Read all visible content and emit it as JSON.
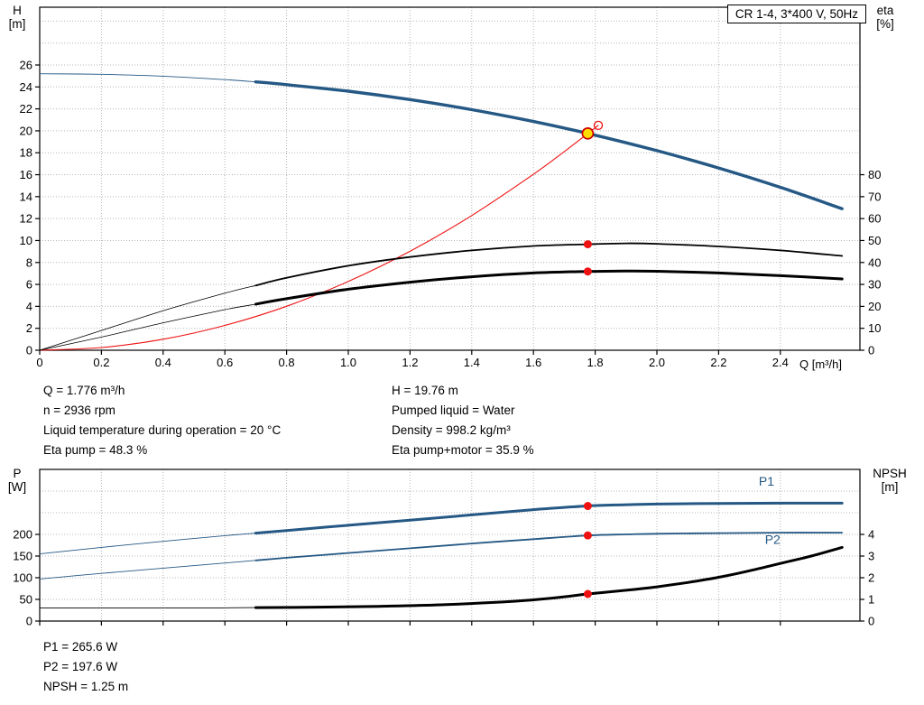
{
  "header": {
    "title_box": "CR 1-4, 3*400 V, 50Hz"
  },
  "colors": {
    "blue": "#255884",
    "red": "#ee1111",
    "black": "#000000",
    "yellow": "#ffdd00",
    "duty_ring": "#cc0000",
    "grid": "#b4b4b4"
  },
  "top_axes": {
    "left_title": "H",
    "left_unit": "[m]",
    "right_title": "eta",
    "right_unit": "[%]",
    "x_title": "Q [m³/h]"
  },
  "bottom_axes": {
    "left_title": "P",
    "left_unit": "[W]",
    "right_title": "NPSH",
    "right_unit": "[m]"
  },
  "duty_info": {
    "left": [
      "Q = 1.776 m³/h",
      "n = 2936 rpm",
      "Liquid temperature during operation = 20 °C",
      "Eta pump = 48.3 %"
    ],
    "right": [
      "H = 19.76 m",
      "Pumped liquid = Water",
      "Density = 998.2 kg/m³",
      "Eta pump+motor = 35.9 %"
    ]
  },
  "power_info": [
    "P1 = 265.6 W",
    "P2 = 197.6 W",
    "NPSH = 1.25 m"
  ],
  "chart_data": [
    {
      "type": "line",
      "title": "QH curve with efficiency and system curve",
      "grid": "dotted",
      "legend": "none",
      "x_axis": {
        "label": "Q [m³/h]",
        "range": [
          0,
          2.66
        ],
        "ticks": [
          "0",
          "0.2",
          "0.4",
          "0.6",
          "0.8",
          "1.0",
          "1.2",
          "1.4",
          "1.6",
          "1.8",
          "2.0",
          "2.2",
          "2.4"
        ]
      },
      "y_left": {
        "label": "H [m]",
        "range": [
          0,
          31.3
        ],
        "ticks": [
          "0",
          "2",
          "4",
          "6",
          "8",
          "10",
          "12",
          "14",
          "16",
          "18",
          "20",
          "22",
          "24",
          "26"
        ]
      },
      "y_right": {
        "label": "eta [%]",
        "range": [
          0,
          100
        ],
        "ticks": [
          "0",
          "10",
          "20",
          "30",
          "40",
          "50",
          "60",
          "70",
          "80"
        ]
      },
      "series": [
        {
          "name": "head-curve",
          "axis": "left",
          "color": "blue",
          "width": 3.4,
          "thin_width": 0.9,
          "thick_from": 0.7,
          "points": [
            [
              0,
              25.2
            ],
            [
              0.2,
              25.15
            ],
            [
              0.4,
              24.98
            ],
            [
              0.6,
              24.67
            ],
            [
              0.7,
              24.46
            ],
            [
              0.8,
              24.21
            ],
            [
              1,
              23.61
            ],
            [
              1.2,
              22.85
            ],
            [
              1.4,
              21.93
            ],
            [
              1.6,
              20.85
            ],
            [
              1.776,
              19.76
            ],
            [
              2,
              18.19
            ],
            [
              2.2,
              16.61
            ],
            [
              2.4,
              14.85
            ],
            [
              2.6,
              12.9
            ]
          ]
        },
        {
          "name": "system-curve",
          "axis": "left",
          "color": "red",
          "width": 1.1,
          "thin_width": 1.1,
          "thick_from": 99,
          "points": [
            [
              0,
              0
            ],
            [
              0.2,
              0.25
            ],
            [
              0.4,
              1.0
            ],
            [
              0.6,
              2.26
            ],
            [
              0.8,
              4.01
            ],
            [
              1.0,
              6.27
            ],
            [
              1.2,
              9.02
            ],
            [
              1.4,
              12.28
            ],
            [
              1.6,
              16.04
            ],
            [
              1.7,
              18.11
            ],
            [
              1.776,
              19.76
            ],
            [
              1.81,
              20.5
            ]
          ]
        },
        {
          "name": "eta-pump-curve",
          "axis": "right",
          "color": "black",
          "width": 1.8,
          "thin_width": 0.8,
          "thick_from": 0.7,
          "points": [
            [
              0,
              0
            ],
            [
              0.2,
              9
            ],
            [
              0.4,
              18
            ],
            [
              0.6,
              26
            ],
            [
              0.7,
              29.5
            ],
            [
              0.8,
              33
            ],
            [
              1,
              38.5
            ],
            [
              1.2,
              42.5
            ],
            [
              1.4,
              45.5
            ],
            [
              1.6,
              47.5
            ],
            [
              1.776,
              48.3
            ],
            [
              1.9,
              48.7
            ],
            [
              2,
              48.5
            ],
            [
              2.2,
              47.3
            ],
            [
              2.4,
              45.5
            ],
            [
              2.6,
              43
            ]
          ]
        },
        {
          "name": "eta-pump-motor-curve",
          "axis": "right",
          "color": "black",
          "width": 3,
          "thin_width": 0.8,
          "thick_from": 0.7,
          "points": [
            [
              0,
              0
            ],
            [
              0.2,
              6
            ],
            [
              0.4,
              12.5
            ],
            [
              0.6,
              18.5
            ],
            [
              0.7,
              21
            ],
            [
              0.8,
              23.5
            ],
            [
              1,
              27.8
            ],
            [
              1.2,
              31
            ],
            [
              1.4,
              33.5
            ],
            [
              1.6,
              35.2
            ],
            [
              1.776,
              35.9
            ],
            [
              1.9,
              36.1
            ],
            [
              2,
              36
            ],
            [
              2.2,
              35.2
            ],
            [
              2.4,
              34
            ],
            [
              2.6,
              32.5
            ]
          ]
        }
      ],
      "markers": [
        {
          "name": "duty-point",
          "axis": "left",
          "x": 1.776,
          "y": 19.76,
          "style": "duty"
        },
        {
          "name": "duty-point-open",
          "axis": "left",
          "x": 1.81,
          "y": 20.5,
          "style": "open"
        },
        {
          "name": "eta-pump-point",
          "axis": "right",
          "x": 1.776,
          "y": 48.3,
          "style": "dot"
        },
        {
          "name": "eta-pump-motor-point",
          "axis": "right",
          "x": 1.776,
          "y": 35.9,
          "style": "dot"
        }
      ],
      "labels": []
    },
    {
      "type": "line",
      "title": "Power and NPSH curves",
      "grid": "dotted",
      "legend": "none",
      "x_axis": {
        "label": "",
        "range": [
          0,
          2.66
        ],
        "ticks": [
          "0",
          "0.2",
          "0.4",
          "0.6",
          "0.8",
          "1.0",
          "1.2",
          "1.4",
          "1.6",
          "1.8",
          "2.0",
          "2.2",
          "2.4"
        ]
      },
      "y_left": {
        "label": "P [W]",
        "range": [
          0,
          350
        ],
        "ticks": [
          "0",
          "50",
          "100",
          "150",
          "200"
        ]
      },
      "y_right": {
        "label": "NPSH [m]",
        "range": [
          0,
          7
        ],
        "ticks": [
          "0",
          "1",
          "2",
          "3",
          "4"
        ]
      },
      "series": [
        {
          "name": "p1-curve",
          "axis": "left",
          "color": "blue",
          "width": 3,
          "thin_width": 0.9,
          "thick_from": 0.7,
          "points": [
            [
              0,
              155
            ],
            [
              0.2,
              170
            ],
            [
              0.4,
              184
            ],
            [
              0.6,
              197
            ],
            [
              0.7,
              203
            ],
            [
              0.8,
              209
            ],
            [
              1,
              221
            ],
            [
              1.2,
              233
            ],
            [
              1.4,
              245
            ],
            [
              1.6,
              257
            ],
            [
              1.776,
              265.6
            ],
            [
              1.9,
              268.5
            ],
            [
              2,
              270
            ],
            [
              2.2,
              271.5
            ],
            [
              2.4,
              272
            ],
            [
              2.6,
              272
            ]
          ]
        },
        {
          "name": "p2-curve",
          "axis": "left",
          "color": "blue",
          "width": 1.8,
          "thin_width": 0.9,
          "thick_from": 0.7,
          "points": [
            [
              0,
              97
            ],
            [
              0.2,
              110
            ],
            [
              0.4,
              122
            ],
            [
              0.6,
              134
            ],
            [
              0.7,
              140
            ],
            [
              0.8,
              146
            ],
            [
              1,
              157
            ],
            [
              1.2,
              168
            ],
            [
              1.4,
              179
            ],
            [
              1.6,
              189
            ],
            [
              1.776,
              197.6
            ],
            [
              1.9,
              200
            ],
            [
              2,
              201.5
            ],
            [
              2.2,
              203
            ],
            [
              2.4,
              204
            ],
            [
              2.6,
              204
            ]
          ]
        },
        {
          "name": "npsh-curve",
          "axis": "right",
          "color": "black",
          "width": 3,
          "thin_width": 0.9,
          "thick_from": 0.7,
          "points": [
            [
              0,
              0.6
            ],
            [
              0.3,
              0.6
            ],
            [
              0.6,
              0.61
            ],
            [
              0.7,
              0.62
            ],
            [
              0.9,
              0.64
            ],
            [
              1.1,
              0.68
            ],
            [
              1.3,
              0.75
            ],
            [
              1.5,
              0.88
            ],
            [
              1.6,
              0.98
            ],
            [
              1.7,
              1.12
            ],
            [
              1.776,
              1.25
            ],
            [
              1.9,
              1.42
            ],
            [
              2,
              1.58
            ],
            [
              2.1,
              1.78
            ],
            [
              2.2,
              2.02
            ],
            [
              2.3,
              2.32
            ],
            [
              2.4,
              2.66
            ],
            [
              2.5,
              3.0
            ],
            [
              2.6,
              3.4
            ]
          ]
        }
      ],
      "markers": [
        {
          "name": "p1-point",
          "axis": "left",
          "x": 1.776,
          "y": 265.6,
          "style": "dot"
        },
        {
          "name": "p2-point",
          "axis": "left",
          "x": 1.776,
          "y": 197.6,
          "style": "dot"
        },
        {
          "name": "npsh-point",
          "axis": "right",
          "x": 1.776,
          "y": 1.25,
          "style": "dot"
        }
      ],
      "labels": [
        {
          "text": "P1",
          "x": 2.33,
          "y": 312,
          "axis": "left"
        },
        {
          "text": "P2",
          "x": 2.35,
          "y": 178,
          "axis": "left"
        }
      ]
    }
  ]
}
